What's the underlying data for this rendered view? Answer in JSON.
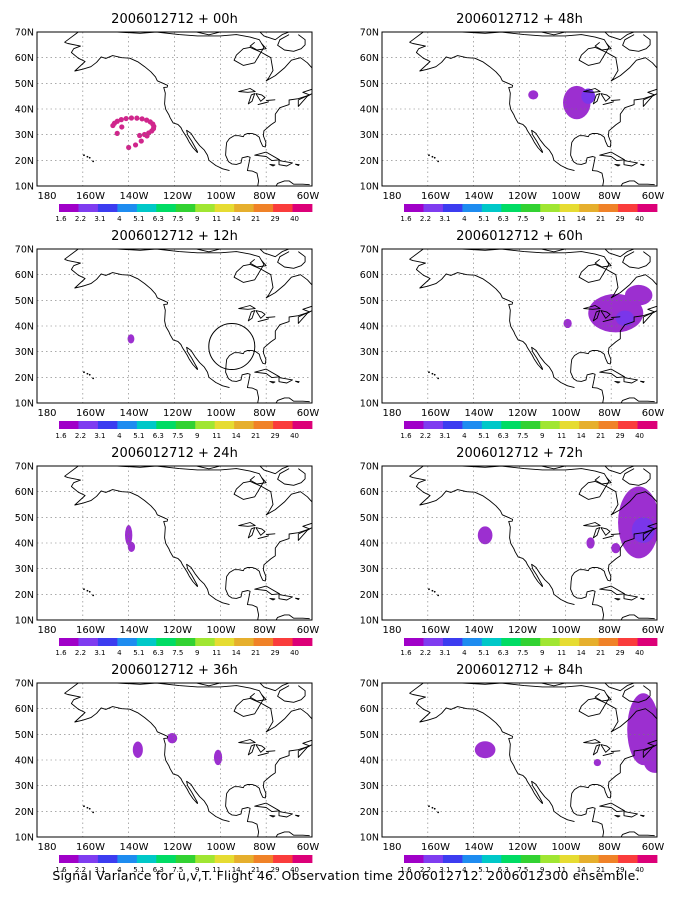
{
  "panels": [
    {
      "title": "2006012712 + 00h",
      "has_track": true
    },
    {
      "title": "2006012712 + 48h",
      "has_track": false
    },
    {
      "title": "2006012712 + 12h",
      "has_track": false
    },
    {
      "title": "2006012712 + 60h",
      "has_track": false
    },
    {
      "title": "2006012712 + 24h",
      "has_track": false
    },
    {
      "title": "2006012712 + 72h",
      "has_track": false
    },
    {
      "title": "2006012712 + 36h",
      "has_track": false
    },
    {
      "title": "2006012712 + 84h",
      "has_track": false
    }
  ],
  "lat_labels": [
    "70N",
    "60N",
    "50N",
    "40N",
    "30N",
    "20N",
    "10N"
  ],
  "lon_labels": [
    "180",
    "160W",
    "140W",
    "120W",
    "100W",
    "80W",
    "60W"
  ],
  "colorbar": {
    "labels": [
      "1.6",
      "2.2",
      "3.1",
      "4",
      "5.1",
      "6.3",
      "7.5",
      "9",
      "11",
      "14",
      "21",
      "29",
      "40"
    ],
    "colors": [
      "#a000c8",
      "#7f3cf0",
      "#3c3cf0",
      "#1e8cf0",
      "#00c8c8",
      "#00dc64",
      "#32d232",
      "#a0e632",
      "#e6dc32",
      "#e6af2d",
      "#f08228",
      "#fa3c3c",
      "#dc0078"
    ]
  },
  "footer": "Signal Variance for u,v,T. Flight 46. Observation time 2006012712. 2006012300 ensemble."
}
